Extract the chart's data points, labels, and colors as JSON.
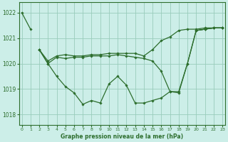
{
  "title": "Graphe pression niveau de la mer (hPa)",
  "xlabel_ticks": [
    0,
    1,
    2,
    3,
    4,
    5,
    6,
    7,
    8,
    9,
    10,
    11,
    12,
    13,
    14,
    15,
    16,
    17,
    18,
    19,
    20,
    21,
    22,
    23
  ],
  "ylim": [
    1017.6,
    1022.4
  ],
  "xlim": [
    -0.3,
    23.3
  ],
  "yticks": [
    1018,
    1019,
    1020,
    1021,
    1022
  ],
  "background_color": "#cceee8",
  "grid_color": "#99ccbb",
  "line_color": "#2d6e2d",
  "series": [
    [
      1022.0,
      1021.35,
      null,
      null,
      null,
      null,
      null,
      null,
      null,
      null,
      null,
      null,
      null,
      null,
      null,
      null,
      null,
      null,
      null,
      null,
      1021.3,
      1021.35,
      1021.4,
      1021.4
    ],
    [
      null,
      null,
      1020.55,
      1020.0,
      1019.5,
      1019.1,
      1018.85,
      1018.4,
      1018.55,
      1018.45,
      1019.2,
      1019.5,
      1019.15,
      1018.45,
      1018.45,
      1018.55,
      1018.65,
      1018.9,
      1018.85,
      1020.0,
      1021.3,
      1021.35,
      1021.4,
      1021.4
    ],
    [
      null,
      null,
      1020.55,
      1020.0,
      1020.25,
      1020.2,
      1020.25,
      1020.25,
      1020.3,
      1020.3,
      1020.3,
      1020.35,
      1020.3,
      1020.25,
      1020.2,
      1020.1,
      1019.7,
      1018.9,
      1018.9,
      1020.0,
      1021.3,
      1021.35,
      1021.4,
      1021.4
    ],
    [
      null,
      null,
      1020.55,
      1020.1,
      1020.3,
      1020.35,
      1020.3,
      1020.3,
      1020.35,
      1020.35,
      1020.4,
      1020.4,
      1020.4,
      1020.4,
      1020.3,
      1020.55,
      1020.9,
      1021.05,
      1021.3,
      1021.35,
      1021.35,
      1021.4,
      1021.4,
      1021.4
    ]
  ]
}
